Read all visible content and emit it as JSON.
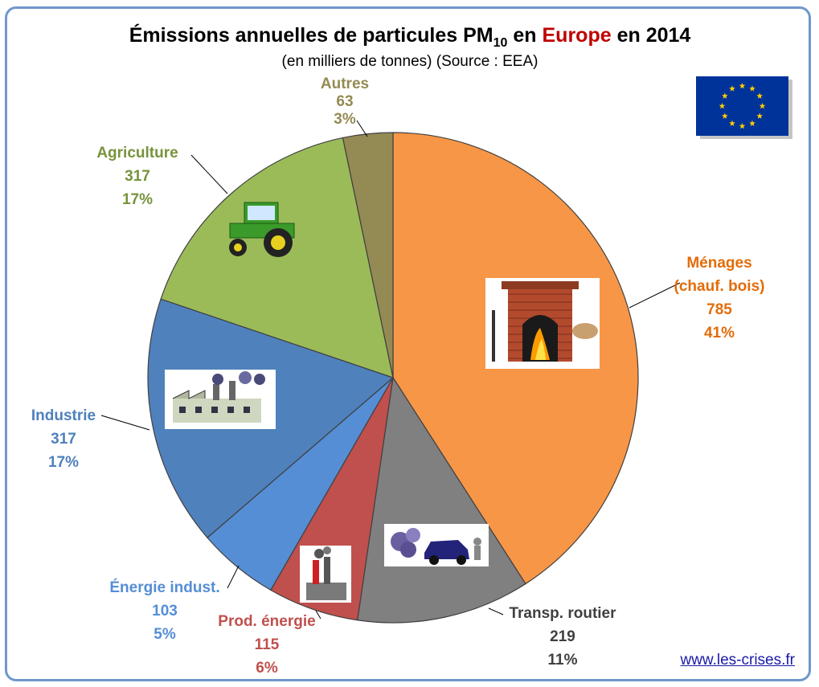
{
  "chart_data": {
    "type": "pie",
    "title_parts": {
      "before_sub": "Émissions annuelles de particules PM",
      "subscript": "10",
      "mid": " en ",
      "highlight": "Europe",
      "end": " en 2014"
    },
    "subtitle": "(en milliers de tonnes) (Source : EEA)",
    "highlight_color": "#c00000",
    "start_angle_deg": 0,
    "direction": "clockwise",
    "slices": [
      {
        "name": "Ménages",
        "name2": "(chauf. bois)",
        "value": 785,
        "value_text": "785",
        "pct_text": "41%",
        "color": "#f79646",
        "label_color": "#e36c09",
        "icon": "fireplace-icon"
      },
      {
        "name": "Transp. routier",
        "value": 219,
        "value_text": "219",
        "pct_text": "11%",
        "color": "#808080",
        "label_color": "#404040",
        "icon": "car-pollution-icon"
      },
      {
        "name": "Prod. énergie",
        "value": 115,
        "value_text": "115",
        "pct_text": "6%",
        "color": "#c0504d",
        "label_color": "#c0504d",
        "icon": "power-plant-icon"
      },
      {
        "name": "Énergie indust.",
        "value": 103,
        "value_text": "103",
        "pct_text": "5%",
        "color": "#558ed5",
        "label_color": "#558ed5",
        "icon": ""
      },
      {
        "name": "Industrie",
        "value": 317,
        "value_text": "317",
        "pct_text": "17%",
        "color": "#4f81bd",
        "label_color": "#4f81bd",
        "icon": "factory-icon"
      },
      {
        "name": "Agriculture",
        "value": 317,
        "value_text": "317",
        "pct_text": "17%",
        "color": "#9bbb59",
        "label_color": "#77933c",
        "icon": "tractor-icon"
      },
      {
        "name": "Autres",
        "value": 63,
        "value_text": "63",
        "pct_text": "3%",
        "color": "#948a54",
        "label_color": "#948a54",
        "icon": ""
      }
    ]
  },
  "flag": {
    "icon": "eu-flag-icon",
    "color": "#003399",
    "star_color": "#ffcc00"
  },
  "footer": {
    "link_text": "www.les-crises.fr"
  }
}
